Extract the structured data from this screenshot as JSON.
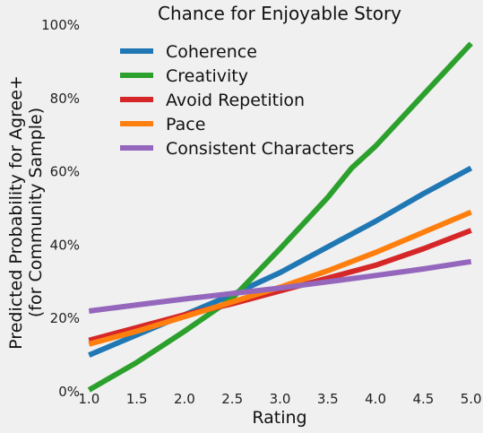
{
  "chart_data": {
    "type": "line",
    "title": "Chance for Enjoyable Story",
    "xlabel": "Rating",
    "ylabel_line1": "Predicted Probability for Agree+",
    "ylabel_line2": "(for Community Sample)",
    "xlim": [
      0.95,
      5.05
    ],
    "ylim": [
      0,
      100
    ],
    "x_ticks": [
      1.0,
      1.5,
      2.0,
      2.5,
      3.0,
      3.5,
      4.0,
      4.5,
      5.0
    ],
    "x_tick_labels": [
      "1.0",
      "1.5",
      "2.0",
      "2.5",
      "3.0",
      "3.5",
      "4.0",
      "4.5",
      "5.0"
    ],
    "y_ticks": [
      0,
      20,
      40,
      60,
      80,
      100
    ],
    "y_tick_labels": [
      "0%",
      "20%",
      "40%",
      "60%",
      "80%",
      "100%"
    ],
    "grid": false,
    "legend_position": "top-left",
    "series": [
      {
        "name": "Coherence",
        "color": "#1f77b4",
        "x": [
          1.0,
          1.5,
          2.0,
          2.5,
          3.0,
          3.5,
          4.0,
          4.5,
          5.0
        ],
        "values": [
          10,
          15.5,
          21,
          26.5,
          32.5,
          39.5,
          46.5,
          54,
          61
        ]
      },
      {
        "name": "Creativity",
        "color": "#2ca02c",
        "x": [
          1.0,
          1.5,
          2.0,
          2.5,
          3.0,
          3.5,
          3.75,
          4.0,
          4.5,
          5.0
        ],
        "values": [
          0.5,
          8,
          16.5,
          25.5,
          39,
          53,
          61,
          67,
          81,
          95
        ]
      },
      {
        "name": "Avoid Repetition",
        "color": "#d62728",
        "x": [
          1.0,
          1.5,
          2.0,
          2.5,
          3.0,
          3.5,
          4.0,
          4.5,
          5.0
        ],
        "values": [
          14,
          17.5,
          21,
          24,
          27.5,
          31,
          34.5,
          39,
          44
        ]
      },
      {
        "name": "Pace",
        "color": "#ff7f0e",
        "x": [
          1.0,
          1.5,
          2.0,
          2.5,
          3.0,
          3.5,
          4.0,
          4.5,
          5.0
        ],
        "values": [
          13,
          16.5,
          20.5,
          24.5,
          28.5,
          33,
          38,
          43.5,
          49
        ]
      },
      {
        "name": "Consistent Characters",
        "color": "#9467bd",
        "x": [
          1.0,
          1.5,
          2.0,
          2.5,
          3.0,
          3.5,
          4.0,
          4.5,
          5.0
        ],
        "values": [
          22,
          23.7,
          25.3,
          26.8,
          28.3,
          30,
          31.7,
          33.5,
          35.5
        ]
      }
    ]
  }
}
